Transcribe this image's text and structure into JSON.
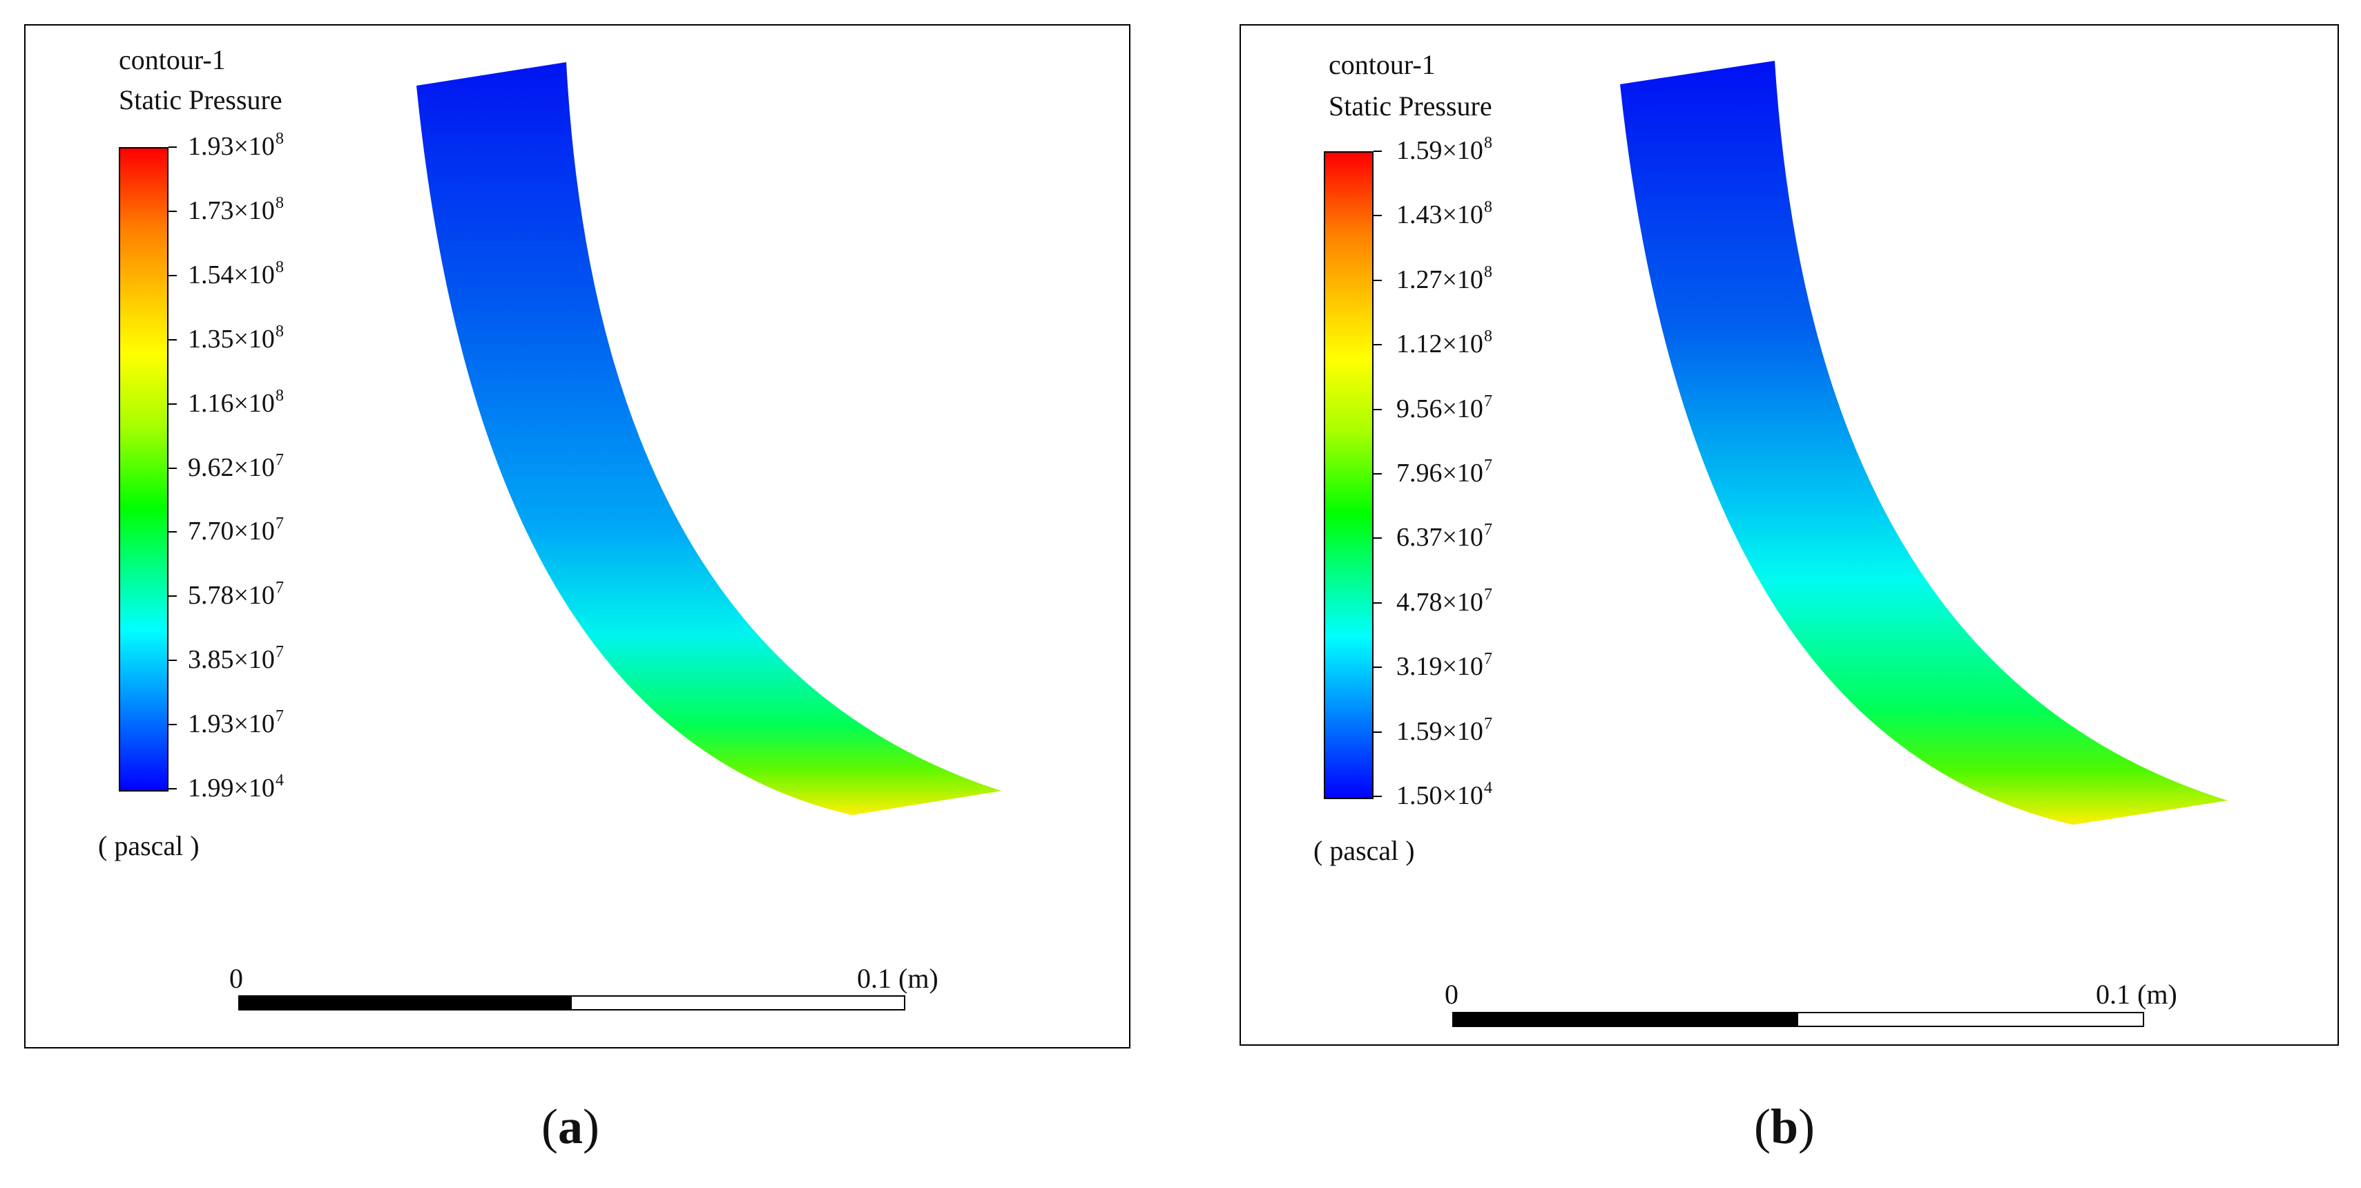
{
  "panels": [
    {
      "id": "a",
      "contour_name": "contour-1",
      "variable": "Static Pressure",
      "ticks": [
        {
          "mant": "1.93",
          "exp": "8"
        },
        {
          "mant": "1.73",
          "exp": "8"
        },
        {
          "mant": "1.54",
          "exp": "8"
        },
        {
          "mant": "1.35",
          "exp": "8"
        },
        {
          "mant": "1.16",
          "exp": "8"
        },
        {
          "mant": "9.62",
          "exp": "7"
        },
        {
          "mant": "7.70",
          "exp": "7"
        },
        {
          "mant": "5.78",
          "exp": "7"
        },
        {
          "mant": "3.85",
          "exp": "7"
        },
        {
          "mant": "1.93",
          "exp": "7"
        },
        {
          "mant": "1.99",
          "exp": "4"
        }
      ],
      "unit": "( pascal )",
      "scale_start": "0",
      "scale_end": "0.1 (m)",
      "caption_open": "(",
      "caption_letter": "a",
      "caption_close": ")"
    },
    {
      "id": "b",
      "contour_name": "contour-1",
      "variable": "Static Pressure",
      "ticks": [
        {
          "mant": "1.59",
          "exp": "8"
        },
        {
          "mant": "1.43",
          "exp": "8"
        },
        {
          "mant": "1.27",
          "exp": "8"
        },
        {
          "mant": "1.12",
          "exp": "8"
        },
        {
          "mant": "9.56",
          "exp": "7"
        },
        {
          "mant": "7.96",
          "exp": "7"
        },
        {
          "mant": "6.37",
          "exp": "7"
        },
        {
          "mant": "4.78",
          "exp": "7"
        },
        {
          "mant": "3.19",
          "exp": "7"
        },
        {
          "mant": "1.59",
          "exp": "7"
        },
        {
          "mant": "1.50",
          "exp": "4"
        }
      ],
      "unit": "( pascal )",
      "scale_start": "0",
      "scale_end": "0.1 (m)",
      "caption_open": "(",
      "caption_letter": "b",
      "caption_close": ")"
    }
  ],
  "colormap": {
    "top": "#ff0000",
    "orange": "#ff7f00",
    "yellow": "#ffff00",
    "green": "#00ff00",
    "cyan": "#00ffff",
    "bottom": "#0000ff"
  }
}
